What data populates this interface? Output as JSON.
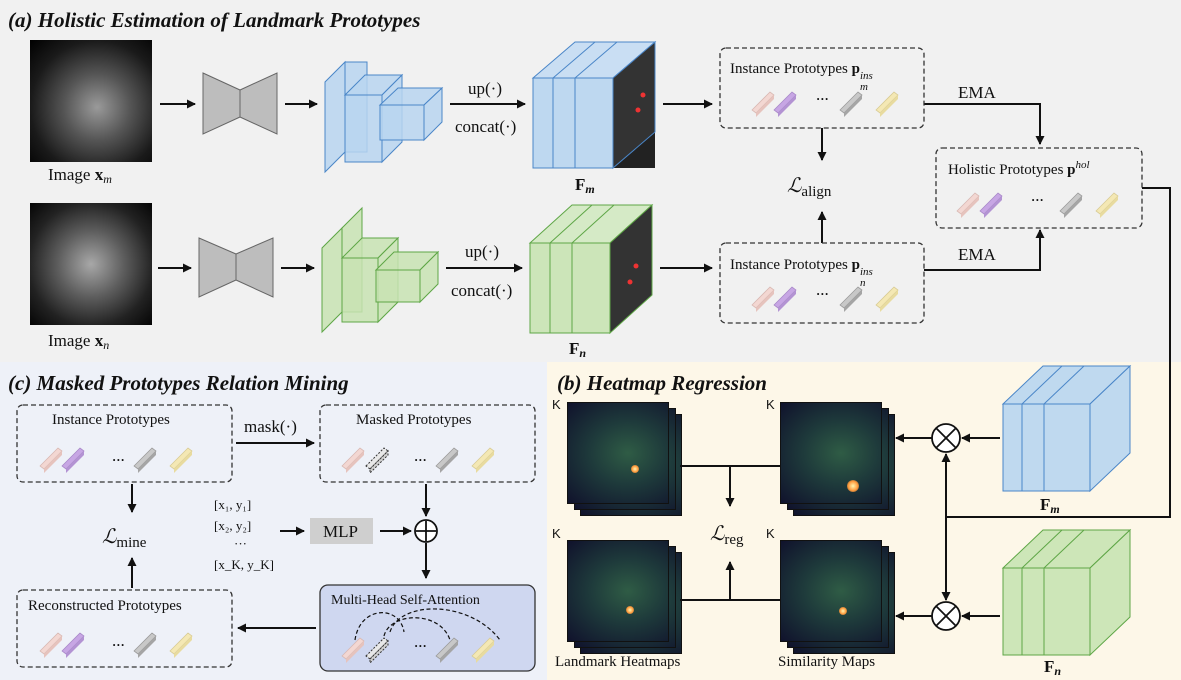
{
  "panel_a": {
    "title": "(a) Holistic Estimation of Landmark Prototypes",
    "image_m_prefix": "Image ",
    "image_m_var": "x",
    "image_m_sub": "m",
    "image_n_prefix": "Image ",
    "image_n_var": "x",
    "image_n_sub": "n",
    "up_label": "up(·)",
    "concat_label": "concat(·)",
    "feat_m_var": "F",
    "feat_m_sub": "m",
    "feat_n_var": "F",
    "feat_n_sub": "n",
    "instance_m_text": "Instance Prototypes ",
    "instance_m_var": "p",
    "instance_m_sup": "ins",
    "instance_m_sub": "m",
    "instance_n_text": "Instance Prototypes ",
    "instance_n_var": "p",
    "instance_n_sup": "ins",
    "instance_n_sub": "n",
    "holistic_text": "Holistic Prototypes ",
    "holistic_var": "p",
    "holistic_sup": "hol",
    "ema_label": "EMA",
    "align_l": "ℒ",
    "align_sub": "align",
    "ellipsis": "..."
  },
  "panel_b": {
    "title": "(b) Heatmap Regression",
    "k_label": "K",
    "reg_l": "ℒ",
    "reg_sub": "reg",
    "landmark_heatmaps": "Landmark Heatmaps",
    "similarity_maps": "Similarity Maps",
    "feat_m_var": "F",
    "feat_m_sub": "m",
    "feat_n_var": "F",
    "feat_n_sub": "n",
    "multiply_symbol": "⊗"
  },
  "panel_c": {
    "title": "(c) Masked Prototypes Relation Mining",
    "instance_prototypes": "Instance Prototypes",
    "mask_label": "mask(·)",
    "masked_prototypes": "Masked Prototypes",
    "mine_l": "ℒ",
    "mine_sub": "mine",
    "coords": [
      "[x",
      "[x",
      "...",
      "[x"
    ],
    "coord_1": "[x₁, y₁]",
    "coord_2": "[x₂, y₂]",
    "coord_dots": "···",
    "coord_k": "[x_K, y_K]",
    "mlp": "MLP",
    "plus_symbol": "⊕",
    "mhsa": "Multi-Head Self-Attention",
    "reconstructed_prototypes": "Reconstructed Prototypes",
    "ellipsis": "..."
  },
  "colors": {
    "panel_a_bg": "#f1f1f1",
    "panel_b_bg": "#fdf7e8",
    "panel_c_bg": "#eef1f8",
    "blue_feature": "#9ec5ea",
    "green_feature": "#b7dca0",
    "proto_pink": "#f3d7d2",
    "proto_purple": "#c7a6e4",
    "proto_gray": "#b4b4b4",
    "proto_yellow": "#f4e8b4",
    "mhsa_box": "#cfd7f0",
    "mlp_box": "#cfcfcf",
    "encoder_gray": "#bdbdbd"
  }
}
